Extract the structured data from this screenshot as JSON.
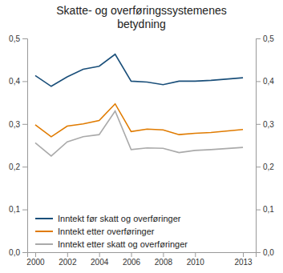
{
  "chart_data": {
    "type": "line",
    "title": "Skatte- og overføringssystemenes\nbetydning",
    "x": [
      2000,
      2001,
      2002,
      2003,
      2004,
      2005,
      2006,
      2007,
      2008,
      2009,
      2010,
      2011,
      2013
    ],
    "series": [
      {
        "name": "Inntekt før skatt og overføringer",
        "color": "#1a4f7a",
        "values": [
          0.413,
          0.388,
          0.41,
          0.428,
          0.435,
          0.463,
          0.4,
          0.398,
          0.392,
          0.4,
          0.4,
          0.402,
          0.408
        ]
      },
      {
        "name": "Inntekt etter overføringer",
        "color": "#e07b00",
        "values": [
          0.298,
          0.27,
          0.295,
          0.3,
          0.308,
          0.347,
          0.282,
          0.288,
          0.286,
          0.275,
          0.278,
          0.28,
          0.287
        ]
      },
      {
        "name": "Inntekt etter skatt og overføringer",
        "color": "#aaaaaa",
        "values": [
          0.256,
          0.225,
          0.258,
          0.27,
          0.275,
          0.33,
          0.24,
          0.244,
          0.243,
          0.233,
          0.238,
          0.24,
          0.245
        ]
      }
    ],
    "xlim": [
      1999.5,
      2013.8
    ],
    "xticks": [
      2000,
      2002,
      2004,
      2006,
      2008,
      2010,
      2013
    ],
    "ylim": [
      0.0,
      0.5
    ],
    "yticks": [
      {
        "value": 0.0,
        "label": "0,0"
      },
      {
        "value": 0.1,
        "label": "0,1"
      },
      {
        "value": 0.2,
        "label": "0,2"
      },
      {
        "value": 0.3,
        "label": "0,3"
      },
      {
        "value": 0.4,
        "label": "0,4"
      },
      {
        "value": 0.5,
        "label": "0,5"
      }
    ],
    "y2lim": [
      0.0,
      0.5
    ],
    "y2ticks": [
      {
        "value": 0.0,
        "label": "0,0"
      },
      {
        "value": 0.1,
        "label": "0,1"
      },
      {
        "value": 0.2,
        "label": "0,2"
      },
      {
        "value": 0.3,
        "label": "0,3"
      },
      {
        "value": 0.4,
        "label": "0,4"
      },
      {
        "value": 0.5,
        "label": "0,5"
      }
    ],
    "grid": false,
    "legend": "lower left"
  }
}
